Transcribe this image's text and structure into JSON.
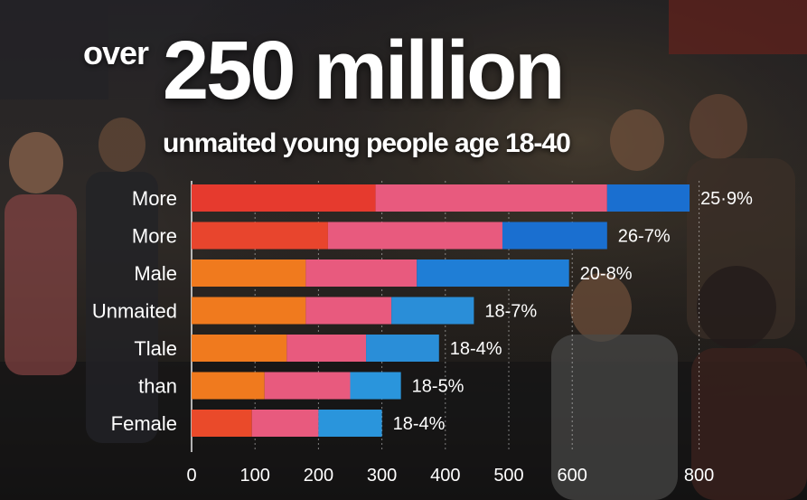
{
  "headline": {
    "prefix": "over",
    "main": "250 million"
  },
  "subtitle": "unmaited young people age 18-40",
  "colors": {
    "segment_1": [
      "#e63a2e",
      "#e8452d",
      "#f07a1e",
      "#f07a1e",
      "#f07a1e",
      "#f07a1e",
      "#ea4a2a"
    ],
    "segment_2": "#e85a7e",
    "segment_3": [
      "#1a6fd0",
      "#1a6fd0",
      "#1f7ed6",
      "#2a8ed8",
      "#2a8ed8",
      "#2a95dc",
      "#2a95dc"
    ]
  },
  "chart_data": {
    "type": "bar",
    "orientation": "horizontal",
    "stacked": true,
    "categories": [
      "More",
      "More",
      "Male",
      "Unmaited",
      "Tlale",
      "than",
      "Female"
    ],
    "series": [
      {
        "values": [
          290,
          215,
          180,
          180,
          150,
          115,
          95
        ]
      },
      {
        "values": [
          365,
          275,
          175,
          135,
          125,
          135,
          105
        ]
      },
      {
        "values": [
          130,
          165,
          240,
          130,
          115,
          80,
          100
        ]
      }
    ],
    "value_labels": [
      "25·9%",
      "26-7%",
      "20-8%",
      "18-7%",
      "18-4%",
      "18-5%",
      "18-4%"
    ],
    "xticks": [
      0,
      100,
      200,
      300,
      400,
      500,
      600,
      800
    ],
    "xlim": [
      0,
      800
    ],
    "grid": true
  }
}
